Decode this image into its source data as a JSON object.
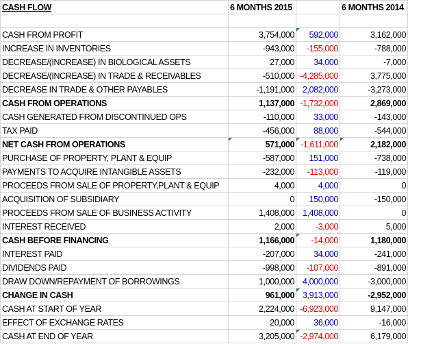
{
  "header": {
    "title": "CASH FLOW",
    "col_2015": "6 MONTHS 2015",
    "col_2014": "6 MONTHS 2014"
  },
  "rows": [
    {
      "label": "CASH FROM PROFIT",
      "v2015": "3,754,000",
      "diff": "592,000",
      "v2014": "3,162,000",
      "bold": false,
      "flags": "c"
    },
    {
      "label": "INCREASE IN INVENTORIES",
      "v2015": "-943,000",
      "diff": "-155,000",
      "v2014": "-788,000",
      "bold": false,
      "flags": ""
    },
    {
      "label": "DECREASE/(INCREASE) IN BIOLOGICAL ASSETS",
      "v2015": "27,000",
      "diff": "34,000",
      "v2014": "-7,000",
      "bold": false,
      "flags": ""
    },
    {
      "label": "DECREASE/(INCREASE) IN TRADE & RECEIVABLES",
      "v2015": "-510,000",
      "diff": "-4,285,000",
      "v2014": "3,775,000",
      "bold": false,
      "flags": ""
    },
    {
      "label": "DECREASE IN TRADE & OTHER PAYABLES",
      "v2015": "-1,191,000",
      "diff": "2,082,000",
      "v2014": "-3,273,000",
      "bold": false,
      "flags": ""
    },
    {
      "label": "CASH FROM OPERATIONS",
      "v2015": "1,137,000",
      "diff": "-1,732,000",
      "v2014": "2,869,000",
      "bold": true,
      "flags": ""
    },
    {
      "label": "CASH GENERATED FROM DISCONTINUED OPS",
      "v2015": "-110,000",
      "diff": "33,000",
      "v2014": "-143,000",
      "bold": false,
      "flags": ""
    },
    {
      "label": "TAX PAID",
      "v2015": "-456,000",
      "diff": "88,000",
      "v2014": "-544,000",
      "bold": false,
      "flags": ""
    },
    {
      "label": "NET CASH FROM OPERATIONS",
      "v2015": "571,000",
      "diff": "-1,611,000",
      "v2014": "2,182,000",
      "bold": true,
      "flags": "bcd"
    },
    {
      "label": "PURCHASE OF PROPERTY, PLANT & EQUIP",
      "v2015": "-587,000",
      "diff": "151,000",
      "v2014": "-738,000",
      "bold": false,
      "flags": ""
    },
    {
      "label": "PAYMENTS TO ACQUIRE INTANGIBLE ASSETS",
      "v2015": "-232,000",
      "diff": "-113,000",
      "v2014": "-119,000",
      "bold": false,
      "flags": ""
    },
    {
      "label": "PROCEEDS FROM SALE OF PROPERTY,PLANT & EQUIP",
      "v2015": "4,000",
      "diff": "4,000",
      "v2014": "0",
      "bold": false,
      "flags": ""
    },
    {
      "label": "ACQUISITION OF SUBSIDIARY",
      "v2015": "0",
      "diff": "150,000",
      "v2014": "-150,000",
      "bold": false,
      "flags": ""
    },
    {
      "label": "PROCEEDS FROM SALE OF BUSINESS ACTIVITY",
      "v2015": "1,408,000",
      "diff": "1,408,000",
      "v2014": "0",
      "bold": false,
      "flags": ""
    },
    {
      "label": "INTEREST RECEIVED",
      "v2015": "2,000",
      "diff": "-3,000",
      "v2014": "5,000",
      "bold": false,
      "flags": ""
    },
    {
      "label": "CASH BEFORE FINANCING",
      "v2015": "1,166,000",
      "diff": "-14,000",
      "v2014": "1,180,000",
      "bold": true,
      "flags": "c"
    },
    {
      "label": "INTEREST PAID",
      "v2015": "-207,000",
      "diff": "34,000",
      "v2014": "-241,000",
      "bold": false,
      "flags": ""
    },
    {
      "label": "DIVIDENDS PAID",
      "v2015": "-998,000",
      "diff": "-107,000",
      "v2014": "-891,000",
      "bold": false,
      "flags": ""
    },
    {
      "label": "DRAW DOWN/REPAYMENT OF BORROWINGS",
      "v2015": "1,000,000",
      "diff": "4,000,000",
      "v2014": "-3,000,000",
      "bold": false,
      "flags": ""
    },
    {
      "label": "CHANGE IN CASH",
      "v2015": "961,000",
      "diff": "3,913,000",
      "v2014": "-2,952,000",
      "bold": true,
      "flags": "c"
    },
    {
      "label": "CASH AT START OF YEAR",
      "v2015": "2,224,000",
      "diff": "-6,923,000",
      "v2014": "9,147,000",
      "bold": false,
      "flags": ""
    },
    {
      "label": "EFFECT OF EXCHANGE RATES",
      "v2015": "20,000",
      "diff": "36,000",
      "v2014": "-16,000",
      "bold": false,
      "flags": ""
    },
    {
      "label": "CASH AT END OF YEAR",
      "v2015": "3,205,000",
      "diff": "-2,974,000",
      "v2014": "6,179,000",
      "bold": false,
      "flags": "c"
    }
  ],
  "colors": {
    "positive": "#0000c0",
    "negative": "#e00000",
    "grid": "#d4d4d4",
    "note_flag": "#1a8a1a"
  }
}
